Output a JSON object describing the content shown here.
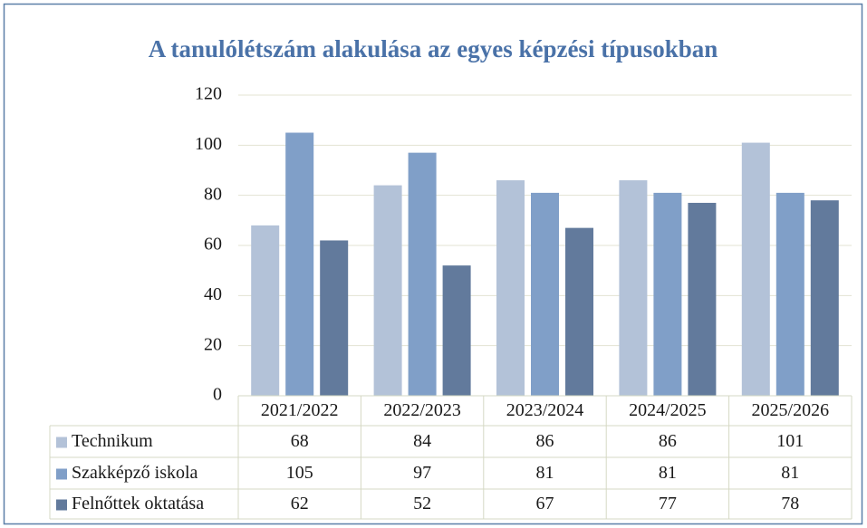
{
  "chart_data": {
    "type": "bar",
    "title": "A tanulólétszám alakulása az egyes képzési típusokban",
    "categories": [
      "2021/2022",
      "2022/2023",
      "2023/2024",
      "2024/2025",
      "2025/2026"
    ],
    "series": [
      {
        "name": "Technikum",
        "color": "#b3c2d8",
        "values": [
          68,
          84,
          86,
          86,
          101
        ]
      },
      {
        "name": "Szakképző iskola",
        "color": "#809fc8",
        "values": [
          105,
          97,
          81,
          81,
          81
        ]
      },
      {
        "name": "Felnőttek oktatása",
        "color": "#627a9c",
        "values": [
          62,
          52,
          67,
          77,
          78
        ]
      }
    ],
    "ylim": [
      0,
      120
    ],
    "yticks": [
      0,
      20,
      40,
      60,
      80,
      100,
      120
    ],
    "grid": true,
    "data_table": true
  }
}
